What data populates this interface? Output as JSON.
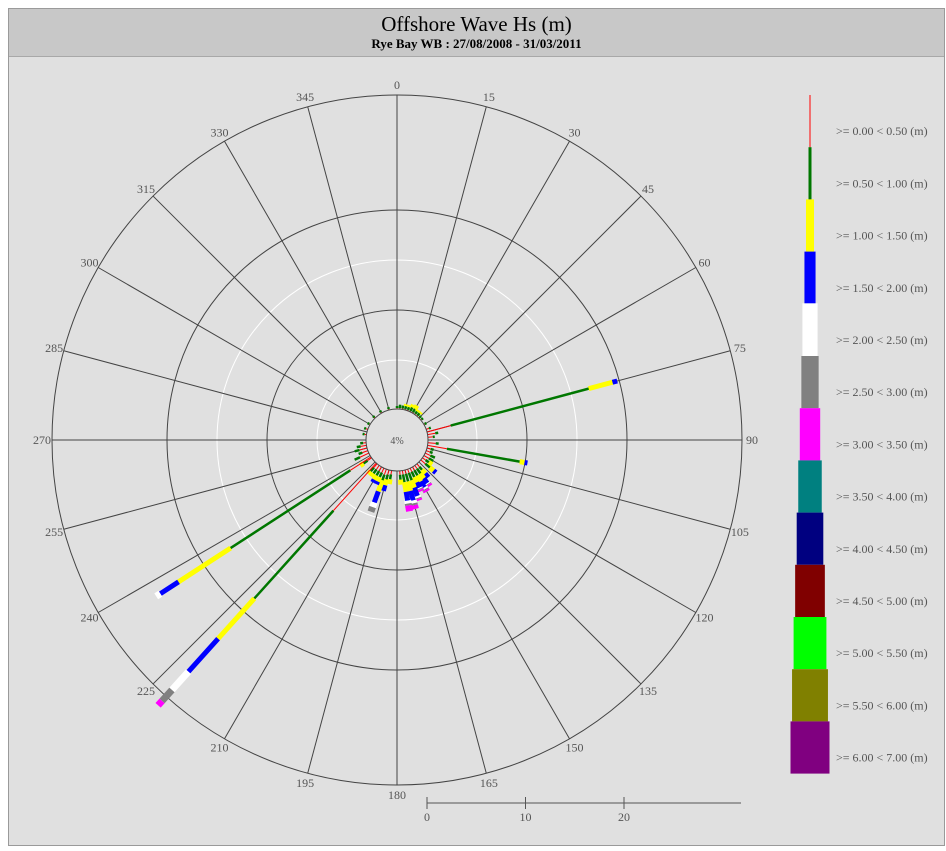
{
  "title": "Offshore Wave Hs (m)",
  "subtitle": "Rye Bay WB : 27/08/2008 - 31/03/2011",
  "chart_data": {
    "type": "wave-rose",
    "direction_labels": [
      "0",
      "15",
      "30",
      "45",
      "60",
      "75",
      "90",
      "105",
      "120",
      "135",
      "150",
      "165",
      "180",
      "195",
      "210",
      "225",
      "240",
      "255",
      "270",
      "285",
      "300",
      "315",
      "330",
      "345"
    ],
    "direction_step_deg": 15,
    "calm_label": "4%",
    "calm_value_pct": 4,
    "radial_max_pct": 35,
    "scale_ticks": [
      {
        "value": 0,
        "label": "0"
      },
      {
        "value": 10,
        "label": "10"
      },
      {
        "value": 20,
        "label": "20"
      }
    ],
    "classes": [
      {
        "label": ">= 0.00 < 0.50 (m)",
        "color": "#ff0000"
      },
      {
        "label": ">= 0.50 < 1.00 (m)",
        "color": "#007700"
      },
      {
        "label": ">= 1.00 < 1.50 (m)",
        "color": "#ffff00"
      },
      {
        "label": ">= 1.50 < 2.00 (m)",
        "color": "#0000ff"
      },
      {
        "label": ">= 2.00 < 2.50 (m)",
        "color": "#ffffff"
      },
      {
        "label": ">= 2.50 < 3.00 (m)",
        "color": "#808080"
      },
      {
        "label": ">= 3.00 < 3.50 (m)",
        "color": "#ff00ff"
      },
      {
        "label": ">= 3.50 < 4.00 (m)",
        "color": "#008080"
      },
      {
        "label": ">= 4.00 < 4.50 (m)",
        "color": "#000080"
      },
      {
        "label": ">= 4.50 < 5.00 (m)",
        "color": "#800000"
      },
      {
        "label": ">= 5.00 < 5.50 (m)",
        "color": "#00ff00"
      },
      {
        "label": ">= 5.50 < 6.00 (m)",
        "color": "#808000"
      },
      {
        "label": ">= 6.00 < 7.00 (m)",
        "color": "#800080"
      }
    ],
    "spokes": [
      {
        "dir": 0,
        "segments": [
          0.1,
          0.2
        ]
      },
      {
        "dir": 5,
        "segments": [
          0.1,
          0.35
        ]
      },
      {
        "dir": 10,
        "segments": [
          0.1,
          0.3
        ]
      },
      {
        "dir": 15,
        "segments": [
          0.1,
          0.3,
          0.2
        ]
      },
      {
        "dir": 20,
        "segments": [
          0.1,
          0.3,
          0.2
        ]
      },
      {
        "dir": 25,
        "segments": [
          0.1,
          0.4,
          0.3
        ]
      },
      {
        "dir": 30,
        "segments": [
          0.1,
          0.4,
          0.4
        ]
      },
      {
        "dir": 35,
        "segments": [
          0.1,
          0.3,
          0.2
        ]
      },
      {
        "dir": 40,
        "segments": [
          0.1,
          0.3,
          0.2
        ]
      },
      {
        "dir": 45,
        "segments": [
          0.1,
          0.2
        ]
      },
      {
        "dir": 50,
        "segments": [
          0.1,
          0.2
        ]
      },
      {
        "dir": 60,
        "segments": [
          0.1,
          0.2
        ]
      },
      {
        "dir": 70,
        "segments": [
          0.3,
          0.2
        ]
      },
      {
        "dir": 75,
        "segments": [
          2.5,
          14.5,
          2.5,
          0.5
        ]
      },
      {
        "dir": 80,
        "segments": [
          0.8,
          0.3
        ]
      },
      {
        "dir": 85,
        "segments": [
          0.5,
          0.2
        ]
      },
      {
        "dir": 95,
        "segments": [
          0.8,
          0.3
        ]
      },
      {
        "dir": 100,
        "segments": [
          2.0,
          7.5,
          0.5,
          0.3
        ]
      },
      {
        "dir": 105,
        "segments": [
          0.4,
          0.3
        ]
      },
      {
        "dir": 110,
        "segments": [
          0.4,
          0.3
        ]
      },
      {
        "dir": 115,
        "segments": [
          0.6,
          0.5
        ]
      },
      {
        "dir": 120,
        "segments": [
          0.6,
          0.5
        ]
      },
      {
        "dir": 125,
        "segments": [
          0.4,
          0.4,
          0.4
        ]
      },
      {
        "dir": 130,
        "segments": [
          0.6,
          0.6,
          0.5,
          0.3
        ]
      },
      {
        "dir": 140,
        "segments": [
          0.4,
          0.4,
          0.5,
          0.5
        ]
      },
      {
        "dir": 145,
        "segments": [
          0.4,
          0.6,
          0.6,
          0.6,
          0.1,
          0.1,
          0.2
        ]
      },
      {
        "dir": 150,
        "segments": [
          0.4,
          0.6,
          0.7,
          0.7,
          0.2,
          0.1,
          0.2
        ]
      },
      {
        "dir": 155,
        "segments": [
          0.4,
          0.6,
          0.6,
          0.6,
          0.1,
          0.1,
          0.2
        ]
      },
      {
        "dir": 160,
        "segments": [
          0.4,
          0.8,
          0.8,
          0.9,
          0.2,
          0.1,
          0.2
        ]
      },
      {
        "dir": 165,
        "segments": [
          0.4,
          0.8,
          1.0,
          1.0,
          0.3,
          0.2,
          0.4
        ]
      },
      {
        "dir": 170,
        "segments": [
          0.4,
          0.8,
          1.0,
          0.9,
          0.3,
          0.2,
          0.6
        ]
      },
      {
        "dir": 175,
        "segments": [
          0.4,
          0.5,
          0.5
        ]
      },
      {
        "dir": 190,
        "segments": [
          0.4,
          0.5,
          0.5
        ]
      },
      {
        "dir": 195,
        "segments": [
          0.5,
          0.5,
          0.6,
          0.6
        ]
      },
      {
        "dir": 200,
        "segments": [
          0.6,
          0.6,
          1.2,
          1.2,
          0.5,
          0.5
        ]
      },
      {
        "dir": 205,
        "segments": [
          0.5,
          0.5,
          0.5,
          0.3
        ]
      },
      {
        "dir": 210,
        "segments": [
          0.5,
          0.5,
          0.5,
          0.3
        ]
      },
      {
        "dir": 215,
        "segments": [
          0.5,
          0.5,
          0.4
        ]
      },
      {
        "dir": 220,
        "segments": [
          0.5,
          0.5,
          0.4
        ]
      },
      {
        "dir": 222,
        "segments": [
          6.5,
          12.0,
          5.5,
          4.5,
          2.5,
          1.5,
          0.6
        ]
      },
      {
        "dir": 235,
        "segments": [
          0.5,
          0.5,
          0.4
        ]
      },
      {
        "dir": 237,
        "segments": [
          2.5,
          14.5,
          6.3,
          2.2,
          0.5
        ]
      },
      {
        "dir": 245,
        "segments": [
          1.0,
          0.6
        ]
      },
      {
        "dir": 250,
        "segments": [
          0.6,
          0.4
        ]
      },
      {
        "dir": 255,
        "segments": [
          0.8,
          0.5
        ]
      },
      {
        "dir": 260,
        "segments": [
          0.6,
          0.4
        ]
      },
      {
        "dir": 265,
        "segments": [
          0.3,
          0.3
        ]
      },
      {
        "dir": 280,
        "segments": [
          0.2,
          0.2
        ]
      },
      {
        "dir": 290,
        "segments": [
          0.2,
          0.2
        ]
      },
      {
        "dir": 300,
        "segments": [
          0.1,
          0.2
        ]
      },
      {
        "dir": 315,
        "segments": [
          0.1,
          0.2
        ]
      },
      {
        "dir": 330,
        "segments": [
          0.1,
          0.2
        ]
      },
      {
        "dir": 345,
        "segments": [
          0.1,
          0.2
        ]
      }
    ]
  }
}
